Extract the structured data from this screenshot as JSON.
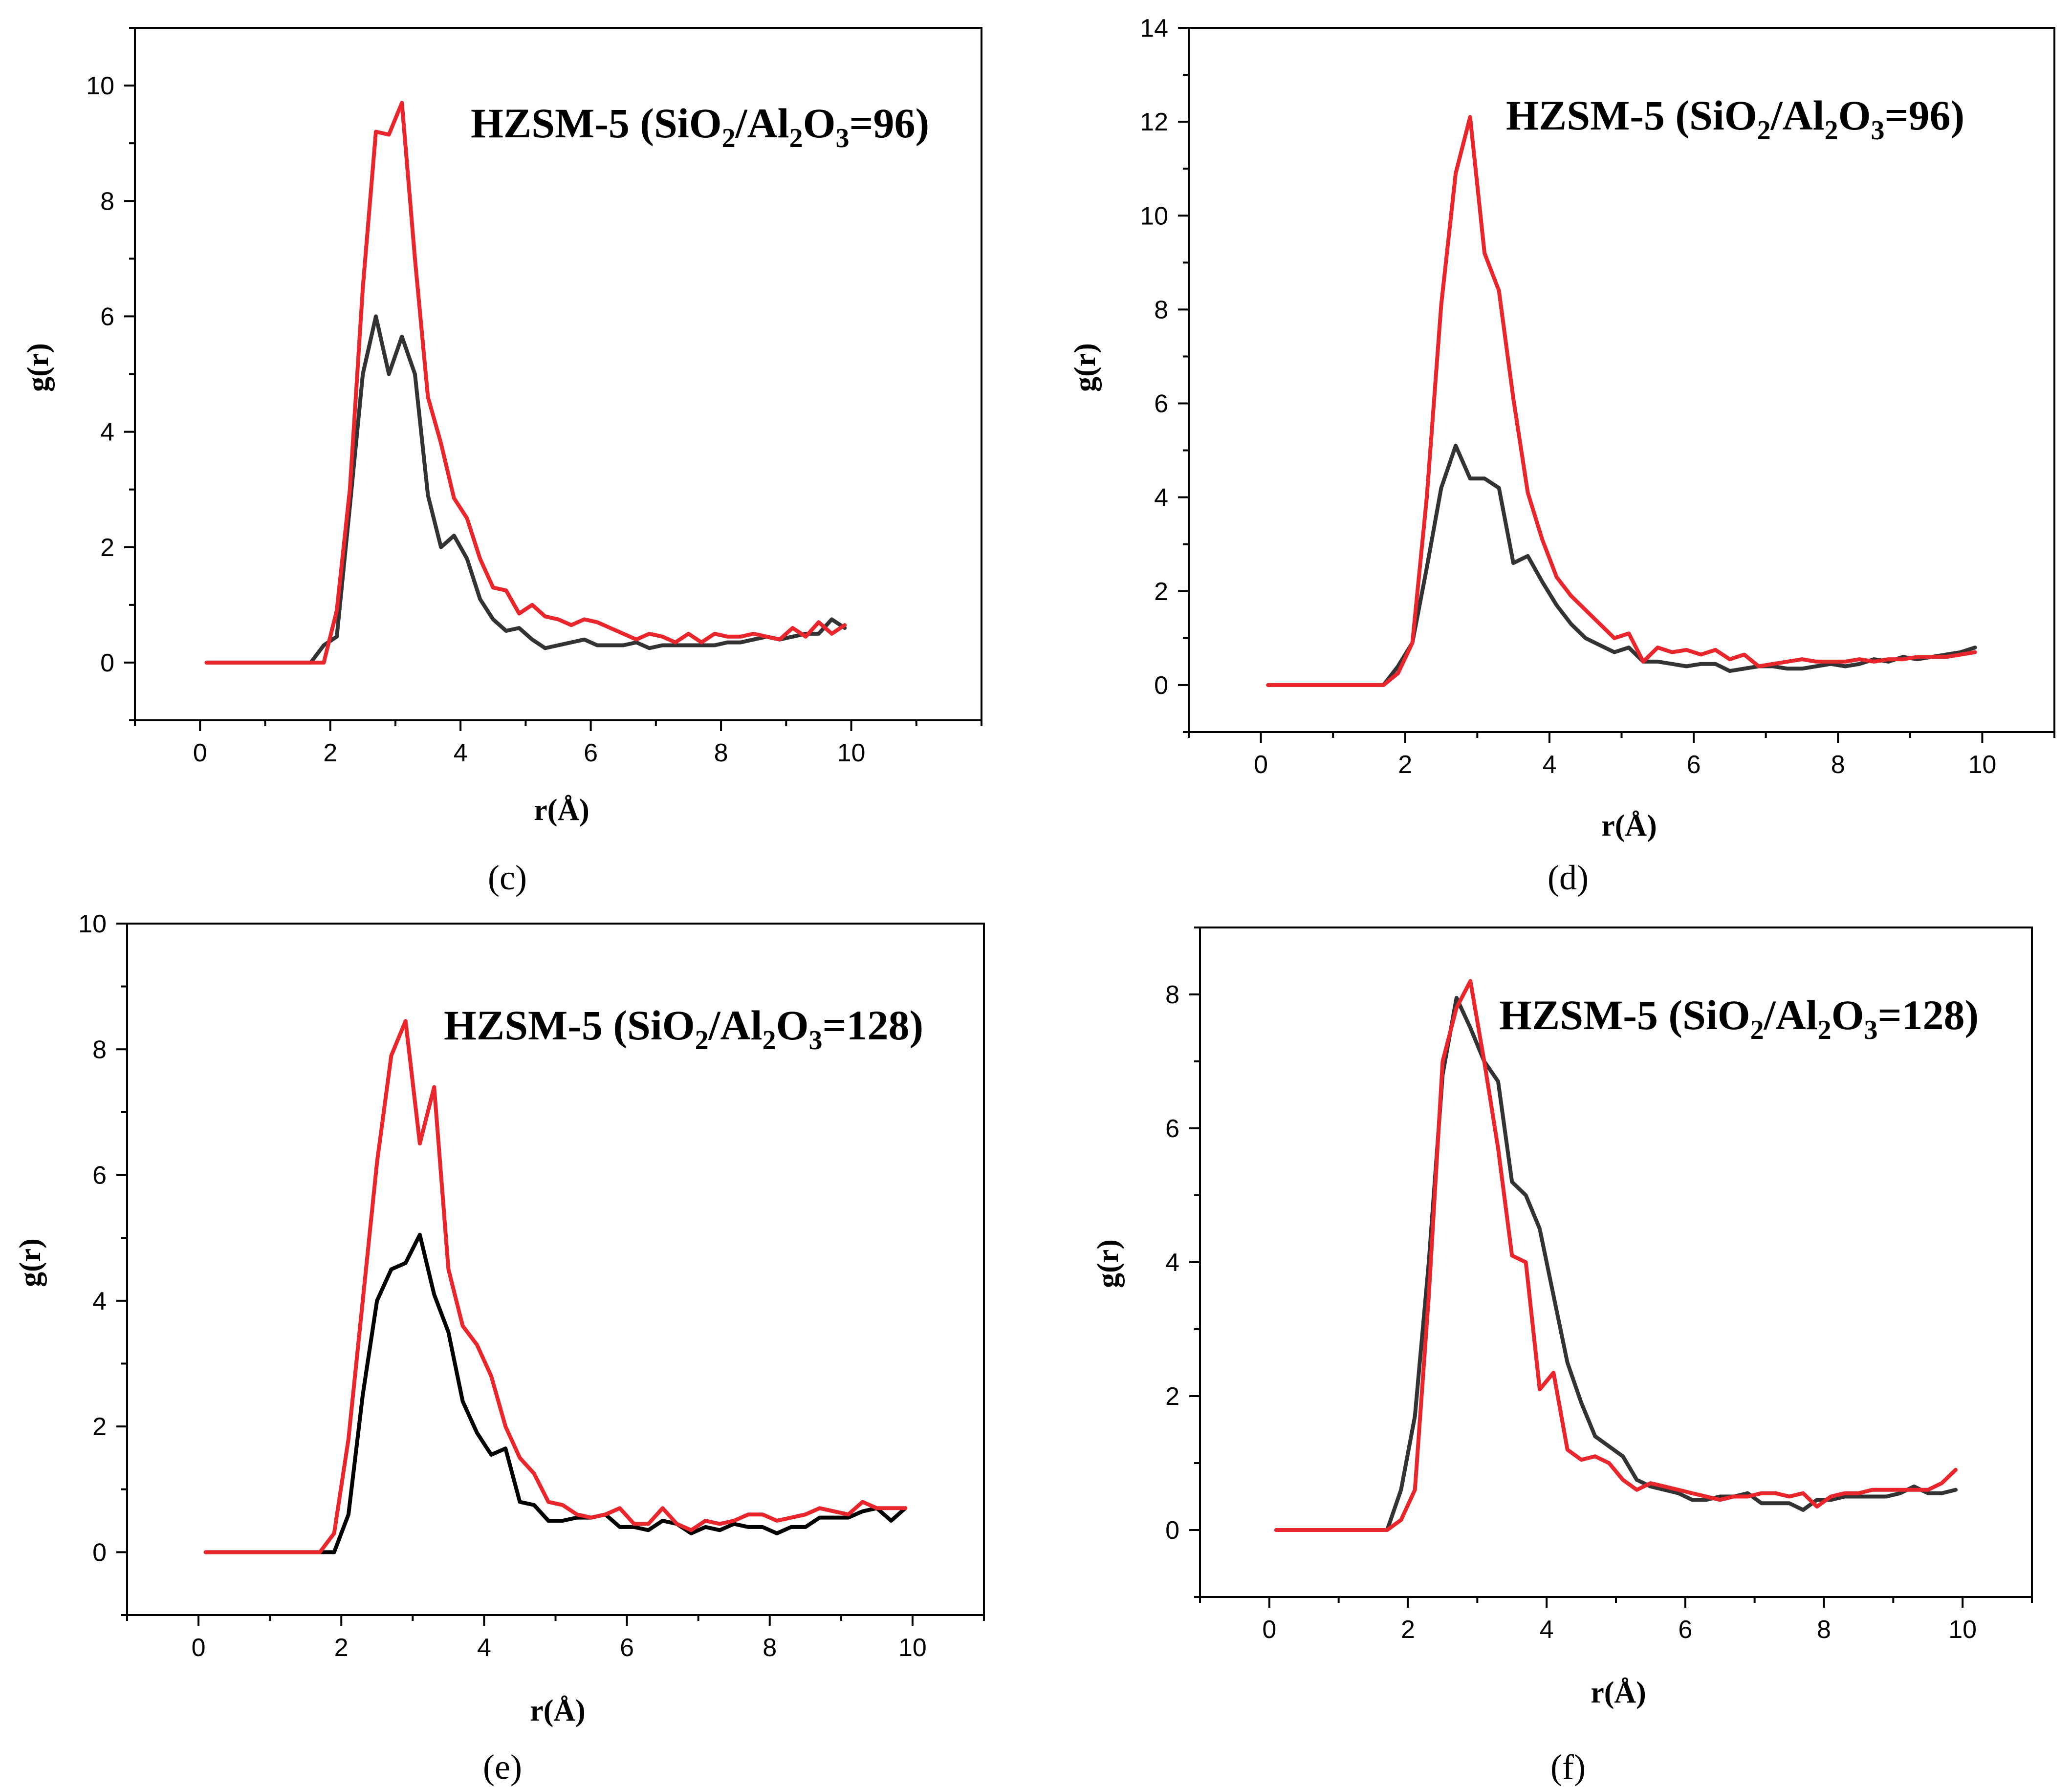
{
  "chart_data": [
    {
      "type": "line",
      "panel": "(c)",
      "title": {
        "pre": "HZSM-5 (SiO",
        "s1": "2",
        "mid1": "/Al",
        "s2": "2",
        "mid2": "O",
        "s3": "3",
        "post": "=96)"
      },
      "xlabel": "r(Å)",
      "ylabel": "g(r)",
      "xlim": [
        -1,
        12
      ],
      "ylim": [
        -1,
        11
      ],
      "xticks": [
        0,
        2,
        4,
        6,
        8,
        10
      ],
      "yticks": [
        0,
        2,
        4,
        6,
        8,
        10
      ],
      "series": [
        {
          "name": "black",
          "color": "#333333",
          "x": [
            0.1,
            1.7,
            1.9,
            2.1,
            2.3,
            2.5,
            2.7,
            2.9,
            3.1,
            3.3,
            3.5,
            3.7,
            3.9,
            4.1,
            4.3,
            4.5,
            4.7,
            4.9,
            5.1,
            5.3,
            5.5,
            5.7,
            5.9,
            6.1,
            6.3,
            6.5,
            6.7,
            6.9,
            7.1,
            7.3,
            7.5,
            7.7,
            7.9,
            8.1,
            8.3,
            8.5,
            8.7,
            8.9,
            9.1,
            9.3,
            9.5,
            9.7,
            9.9
          ],
          "y": [
            0,
            0,
            0.3,
            0.45,
            2.7,
            5.0,
            6.0,
            5.0,
            5.65,
            5.0,
            2.9,
            2.0,
            2.2,
            1.8,
            1.1,
            0.75,
            0.55,
            0.6,
            0.4,
            0.25,
            0.3,
            0.35,
            0.4,
            0.3,
            0.3,
            0.3,
            0.35,
            0.25,
            0.3,
            0.3,
            0.3,
            0.3,
            0.3,
            0.35,
            0.35,
            0.4,
            0.45,
            0.4,
            0.45,
            0.5,
            0.5,
            0.75,
            0.6
          ]
        },
        {
          "name": "red",
          "color": "#e8262c",
          "x": [
            0.1,
            1.7,
            1.9,
            2.1,
            2.3,
            2.5,
            2.7,
            2.9,
            3.1,
            3.3,
            3.5,
            3.7,
            3.9,
            4.1,
            4.3,
            4.5,
            4.7,
            4.9,
            5.1,
            5.3,
            5.5,
            5.7,
            5.9,
            6.1,
            6.3,
            6.5,
            6.7,
            6.9,
            7.1,
            7.3,
            7.5,
            7.7,
            7.9,
            8.1,
            8.3,
            8.5,
            8.7,
            8.9,
            9.1,
            9.3,
            9.5,
            9.7,
            9.9
          ],
          "y": [
            0,
            0,
            0,
            0.9,
            3.0,
            6.5,
            9.2,
            9.15,
            9.7,
            7.0,
            4.6,
            3.8,
            2.85,
            2.5,
            1.8,
            1.3,
            1.25,
            0.85,
            1.0,
            0.8,
            0.75,
            0.65,
            0.75,
            0.7,
            0.6,
            0.5,
            0.4,
            0.5,
            0.45,
            0.35,
            0.5,
            0.35,
            0.5,
            0.45,
            0.45,
            0.5,
            0.45,
            0.4,
            0.6,
            0.45,
            0.7,
            0.5,
            0.65
          ]
        }
      ]
    },
    {
      "type": "line",
      "panel": "(d)",
      "title": {
        "pre": "HZSM-5 (SiO",
        "s1": "2",
        "mid1": "/Al",
        "s2": "2",
        "mid2": "O",
        "s3": "3",
        "post": "=96)"
      },
      "xlabel": "r(Å)",
      "ylabel": "g(r)",
      "xlim": [
        -1,
        11
      ],
      "ylim": [
        -1,
        14
      ],
      "xticks": [
        0,
        2,
        4,
        6,
        8,
        10
      ],
      "yticks": [
        0,
        2,
        4,
        6,
        8,
        10,
        12,
        14
      ],
      "series": [
        {
          "name": "black",
          "color": "#333333",
          "x": [
            0.1,
            1.7,
            1.9,
            2.1,
            2.3,
            2.5,
            2.7,
            2.9,
            3.1,
            3.3,
            3.5,
            3.7,
            3.9,
            4.1,
            4.3,
            4.5,
            4.7,
            4.9,
            5.1,
            5.3,
            5.5,
            5.7,
            5.9,
            6.1,
            6.3,
            6.5,
            6.7,
            6.9,
            7.1,
            7.3,
            7.5,
            7.7,
            7.9,
            8.1,
            8.3,
            8.5,
            8.7,
            8.9,
            9.1,
            9.3,
            9.5,
            9.7,
            9.9
          ],
          "y": [
            0,
            0,
            0.4,
            0.9,
            2.5,
            4.2,
            5.1,
            4.4,
            4.4,
            4.2,
            2.6,
            2.75,
            2.2,
            1.7,
            1.3,
            1.0,
            0.85,
            0.7,
            0.8,
            0.5,
            0.5,
            0.45,
            0.4,
            0.45,
            0.45,
            0.3,
            0.35,
            0.4,
            0.4,
            0.35,
            0.35,
            0.4,
            0.45,
            0.4,
            0.45,
            0.55,
            0.5,
            0.6,
            0.55,
            0.6,
            0.65,
            0.7,
            0.8
          ]
        },
        {
          "name": "red",
          "color": "#e8262c",
          "x": [
            0.1,
            1.7,
            1.9,
            2.1,
            2.3,
            2.5,
            2.7,
            2.9,
            3.1,
            3.3,
            3.5,
            3.7,
            3.9,
            4.1,
            4.3,
            4.5,
            4.7,
            4.9,
            5.1,
            5.3,
            5.5,
            5.7,
            5.9,
            6.1,
            6.3,
            6.5,
            6.7,
            6.9,
            7.1,
            7.3,
            7.5,
            7.7,
            7.9,
            8.1,
            8.3,
            8.5,
            8.7,
            8.9,
            9.1,
            9.3,
            9.5,
            9.7,
            9.9
          ],
          "y": [
            0,
            0,
            0.25,
            0.9,
            4.0,
            8.1,
            10.9,
            12.1,
            9.2,
            8.4,
            6.1,
            4.1,
            3.1,
            2.3,
            1.9,
            1.6,
            1.3,
            1.0,
            1.1,
            0.5,
            0.8,
            0.7,
            0.75,
            0.65,
            0.75,
            0.55,
            0.65,
            0.4,
            0.45,
            0.5,
            0.55,
            0.5,
            0.5,
            0.5,
            0.55,
            0.5,
            0.55,
            0.55,
            0.6,
            0.6,
            0.6,
            0.65,
            0.7
          ]
        }
      ]
    },
    {
      "type": "line",
      "panel": "(e)",
      "title": {
        "pre": "HZSM-5 (SiO",
        "s1": "2",
        "mid1": "/Al",
        "s2": "2",
        "mid2": "O",
        "s3": "3",
        "post": "=128)"
      },
      "xlabel": "r(Å)",
      "ylabel": "g(r)",
      "xlim": [
        -1,
        11
      ],
      "ylim": [
        -1,
        10
      ],
      "xticks": [
        0,
        2,
        4,
        6,
        8,
        10
      ],
      "yticks": [
        0,
        2,
        4,
        6,
        8,
        10
      ],
      "series": [
        {
          "name": "black",
          "color": "#000000",
          "x": [
            0.1,
            1.7,
            1.9,
            2.1,
            2.3,
            2.5,
            2.7,
            2.9,
            3.1,
            3.3,
            3.5,
            3.7,
            3.9,
            4.1,
            4.3,
            4.5,
            4.7,
            4.9,
            5.1,
            5.3,
            5.5,
            5.7,
            5.9,
            6.1,
            6.3,
            6.5,
            6.7,
            6.9,
            7.1,
            7.3,
            7.5,
            7.7,
            7.9,
            8.1,
            8.3,
            8.5,
            8.7,
            8.9,
            9.1,
            9.3,
            9.5,
            9.7,
            9.9
          ],
          "y": [
            0,
            0,
            0,
            0.6,
            2.5,
            4.0,
            4.5,
            4.6,
            5.05,
            4.1,
            3.5,
            2.4,
            1.9,
            1.55,
            1.65,
            0.8,
            0.75,
            0.5,
            0.5,
            0.55,
            0.55,
            0.6,
            0.4,
            0.4,
            0.35,
            0.5,
            0.45,
            0.3,
            0.4,
            0.35,
            0.45,
            0.4,
            0.4,
            0.3,
            0.4,
            0.4,
            0.55,
            0.55,
            0.55,
            0.65,
            0.7,
            0.5,
            0.7
          ]
        },
        {
          "name": "red",
          "color": "#e8262c",
          "x": [
            0.1,
            1.7,
            1.9,
            2.1,
            2.3,
            2.5,
            2.7,
            2.9,
            3.1,
            3.3,
            3.5,
            3.7,
            3.9,
            4.1,
            4.3,
            4.5,
            4.7,
            4.9,
            5.1,
            5.3,
            5.5,
            5.7,
            5.9,
            6.1,
            6.3,
            6.5,
            6.7,
            6.9,
            7.1,
            7.3,
            7.5,
            7.7,
            7.9,
            8.1,
            8.3,
            8.5,
            8.7,
            8.9,
            9.1,
            9.3,
            9.5,
            9.7,
            9.9
          ],
          "y": [
            0,
            0,
            0.3,
            1.8,
            4.0,
            6.2,
            7.9,
            8.45,
            6.5,
            7.4,
            4.5,
            3.6,
            3.3,
            2.8,
            2.0,
            1.5,
            1.25,
            0.8,
            0.75,
            0.6,
            0.55,
            0.6,
            0.7,
            0.45,
            0.45,
            0.7,
            0.45,
            0.35,
            0.5,
            0.45,
            0.5,
            0.6,
            0.6,
            0.5,
            0.55,
            0.6,
            0.7,
            0.65,
            0.6,
            0.8,
            0.7,
            0.7,
            0.7
          ]
        }
      ]
    },
    {
      "type": "line",
      "panel": "(f)",
      "title": {
        "pre": "HZSM-5 (SiO",
        "s1": "2",
        "mid1": "/Al",
        "s2": "2",
        "mid2": "O",
        "s3": "3",
        "post": "=128)"
      },
      "xlabel": "r(Å)",
      "ylabel": "g(r)",
      "xlim": [
        -1,
        11
      ],
      "ylim": [
        -1,
        9
      ],
      "xticks": [
        0,
        2,
        4,
        6,
        8,
        10
      ],
      "yticks": [
        0,
        2,
        4,
        6,
        8
      ],
      "series": [
        {
          "name": "black",
          "color": "#333333",
          "x": [
            0.1,
            1.7,
            1.9,
            2.1,
            2.3,
            2.5,
            2.7,
            2.9,
            3.1,
            3.3,
            3.5,
            3.7,
            3.9,
            4.1,
            4.3,
            4.5,
            4.7,
            4.9,
            5.1,
            5.3,
            5.5,
            5.7,
            5.9,
            6.1,
            6.3,
            6.5,
            6.7,
            6.9,
            7.1,
            7.3,
            7.5,
            7.7,
            7.9,
            8.1,
            8.3,
            8.5,
            8.7,
            8.9,
            9.1,
            9.3,
            9.5,
            9.7,
            9.9
          ],
          "y": [
            0,
            0,
            0.6,
            1.7,
            4.0,
            6.8,
            7.95,
            7.5,
            7.0,
            6.7,
            5.2,
            5.0,
            4.5,
            3.5,
            2.5,
            1.9,
            1.4,
            1.25,
            1.1,
            0.75,
            0.65,
            0.6,
            0.55,
            0.45,
            0.45,
            0.5,
            0.5,
            0.55,
            0.4,
            0.4,
            0.4,
            0.3,
            0.45,
            0.45,
            0.5,
            0.5,
            0.5,
            0.5,
            0.55,
            0.65,
            0.55,
            0.55,
            0.6
          ]
        },
        {
          "name": "red",
          "color": "#e8262c",
          "x": [
            0.1,
            1.7,
            1.9,
            2.1,
            2.3,
            2.5,
            2.7,
            2.9,
            3.1,
            3.3,
            3.5,
            3.7,
            3.9,
            4.1,
            4.3,
            4.5,
            4.7,
            4.9,
            5.1,
            5.3,
            5.5,
            5.7,
            5.9,
            6.1,
            6.3,
            6.5,
            6.7,
            6.9,
            7.1,
            7.3,
            7.5,
            7.7,
            7.9,
            8.1,
            8.3,
            8.5,
            8.7,
            8.9,
            9.1,
            9.3,
            9.5,
            9.7,
            9.9
          ],
          "y": [
            0,
            0,
            0.15,
            0.6,
            3.5,
            7.0,
            7.8,
            8.2,
            7.0,
            5.7,
            4.1,
            4.0,
            2.1,
            2.35,
            1.2,
            1.05,
            1.1,
            1.0,
            0.75,
            0.6,
            0.7,
            0.65,
            0.6,
            0.55,
            0.5,
            0.45,
            0.5,
            0.5,
            0.55,
            0.55,
            0.5,
            0.55,
            0.35,
            0.5,
            0.55,
            0.55,
            0.6,
            0.6,
            0.6,
            0.6,
            0.6,
            0.7,
            0.9
          ]
        }
      ]
    }
  ]
}
